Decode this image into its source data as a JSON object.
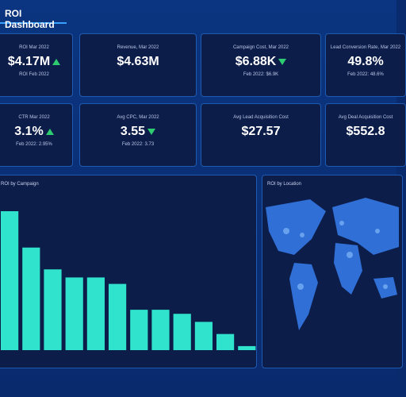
{
  "header": {
    "title": "ROI Dashboard"
  },
  "kpis": [
    {
      "label": "ROI Mar 2022",
      "value": "$4.17M",
      "trend": "up",
      "sub": "ROI Feb 2022"
    },
    {
      "label": "Revenue, Mar 2022",
      "value": "$4.63M"
    },
    {
      "label": "Campaign Cost, Mar 2022",
      "value": "$6.88K",
      "trend": "down",
      "sub": "Feb 2022: $6.9K"
    },
    {
      "label": "Lead Conversion Rate, Mar 2022",
      "value": "49.8%",
      "sub": "Feb 2022: 48.6%"
    },
    {
      "label": "CTR Mar 2022",
      "value": "3.1%",
      "trend": "up",
      "sub": "Feb 2022: 2.95%"
    },
    {
      "label": "Avg CPC, Mar 2022",
      "value": "3.55",
      "trend": "down",
      "sub": "Feb 2022: 3.73"
    },
    {
      "label": "Avg Lead Acquisition Cost",
      "value": "$27.57"
    },
    {
      "label": "Avg Deal Acquisition Cost",
      "value": "$552.8"
    }
  ],
  "bar_panel": {
    "title": "ROI by Campaign",
    "type": "bar",
    "color": "#2fe3cc",
    "values": [
      172,
      127,
      100,
      90,
      90,
      82,
      50,
      50,
      45,
      35,
      20,
      5
    ]
  },
  "map_panel": {
    "title": "ROI by Location"
  }
}
